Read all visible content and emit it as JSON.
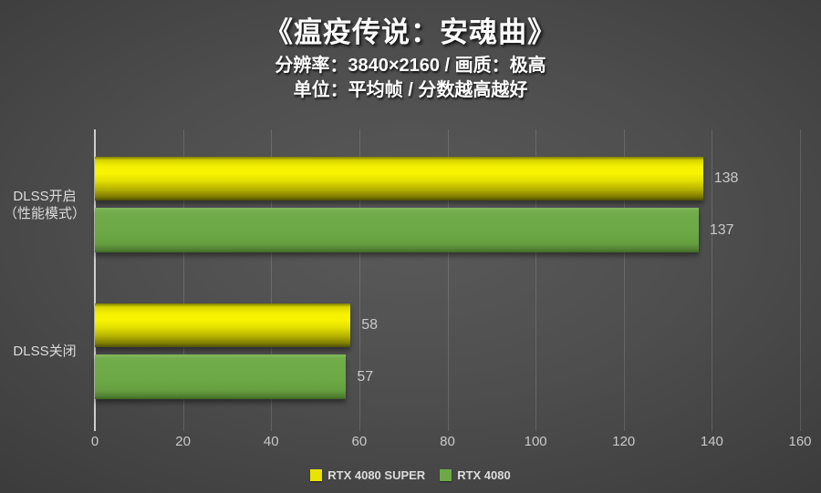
{
  "header": {
    "title": "《瘟疫传说：安魂曲》",
    "subtitle1": "分辨率：3840×2160 / 画质：极高",
    "subtitle2": "单位：平均帧 / 分数越高越好"
  },
  "chart_data": {
    "type": "bar",
    "orientation": "horizontal",
    "title": "《瘟疫传说：安魂曲》",
    "xlabel": "",
    "ylabel": "",
    "categories": [
      "DLSS开启（性能模式）",
      "DLSS关闭"
    ],
    "category_lines": [
      [
        "DLSS开启",
        "（性能模式）"
      ],
      [
        "DLSS关闭"
      ]
    ],
    "series": [
      {
        "name": "RTX 4080 SUPER",
        "color": "#e8e400",
        "values": [
          138,
          58
        ]
      },
      {
        "name": "RTX 4080",
        "color": "#6fa846",
        "values": [
          137,
          57
        ]
      }
    ],
    "xlim": [
      0,
      160
    ],
    "xticks": [
      0,
      20,
      40,
      60,
      80,
      100,
      120,
      140,
      160
    ],
    "grid": true,
    "legend_position": "bottom",
    "value_labels": true
  },
  "colors": {
    "background_center": "#5a5a5a",
    "background_edge": "#232323",
    "axis_line": "#cfcfcf",
    "gridline": "#4f4f4f",
    "tick_label": "#c9c9c9",
    "value_label": "#c9c9c9",
    "category_label": "#dcdcdc",
    "title_text": "#ffffff",
    "bar_yellow": "#f0ec00",
    "bar_green": "#6ca845"
  }
}
